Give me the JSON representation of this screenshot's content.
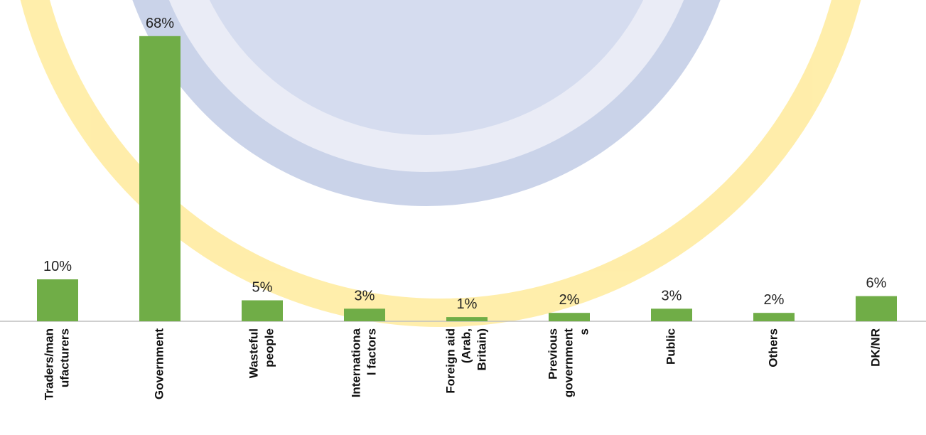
{
  "chart_data": {
    "type": "bar",
    "categories": [
      [
        "Traders/man",
        "ufacturers"
      ],
      [
        "Government"
      ],
      [
        "Wasteful",
        "people"
      ],
      [
        "Internationa",
        "l factors"
      ],
      [
        "Foreign aid",
        "(Arab,",
        "Britain)"
      ],
      [
        "Previous",
        "government",
        "s"
      ],
      [
        "Public"
      ],
      [
        "Others"
      ],
      [
        "DK/NR"
      ]
    ],
    "values": [
      10,
      68,
      5,
      3,
      1,
      2,
      3,
      2,
      6
    ],
    "value_labels": [
      "10%",
      "68%",
      "5%",
      "3%",
      "1%",
      "2%",
      "3%",
      "2%",
      "6%"
    ],
    "color": "#70ad47"
  }
}
